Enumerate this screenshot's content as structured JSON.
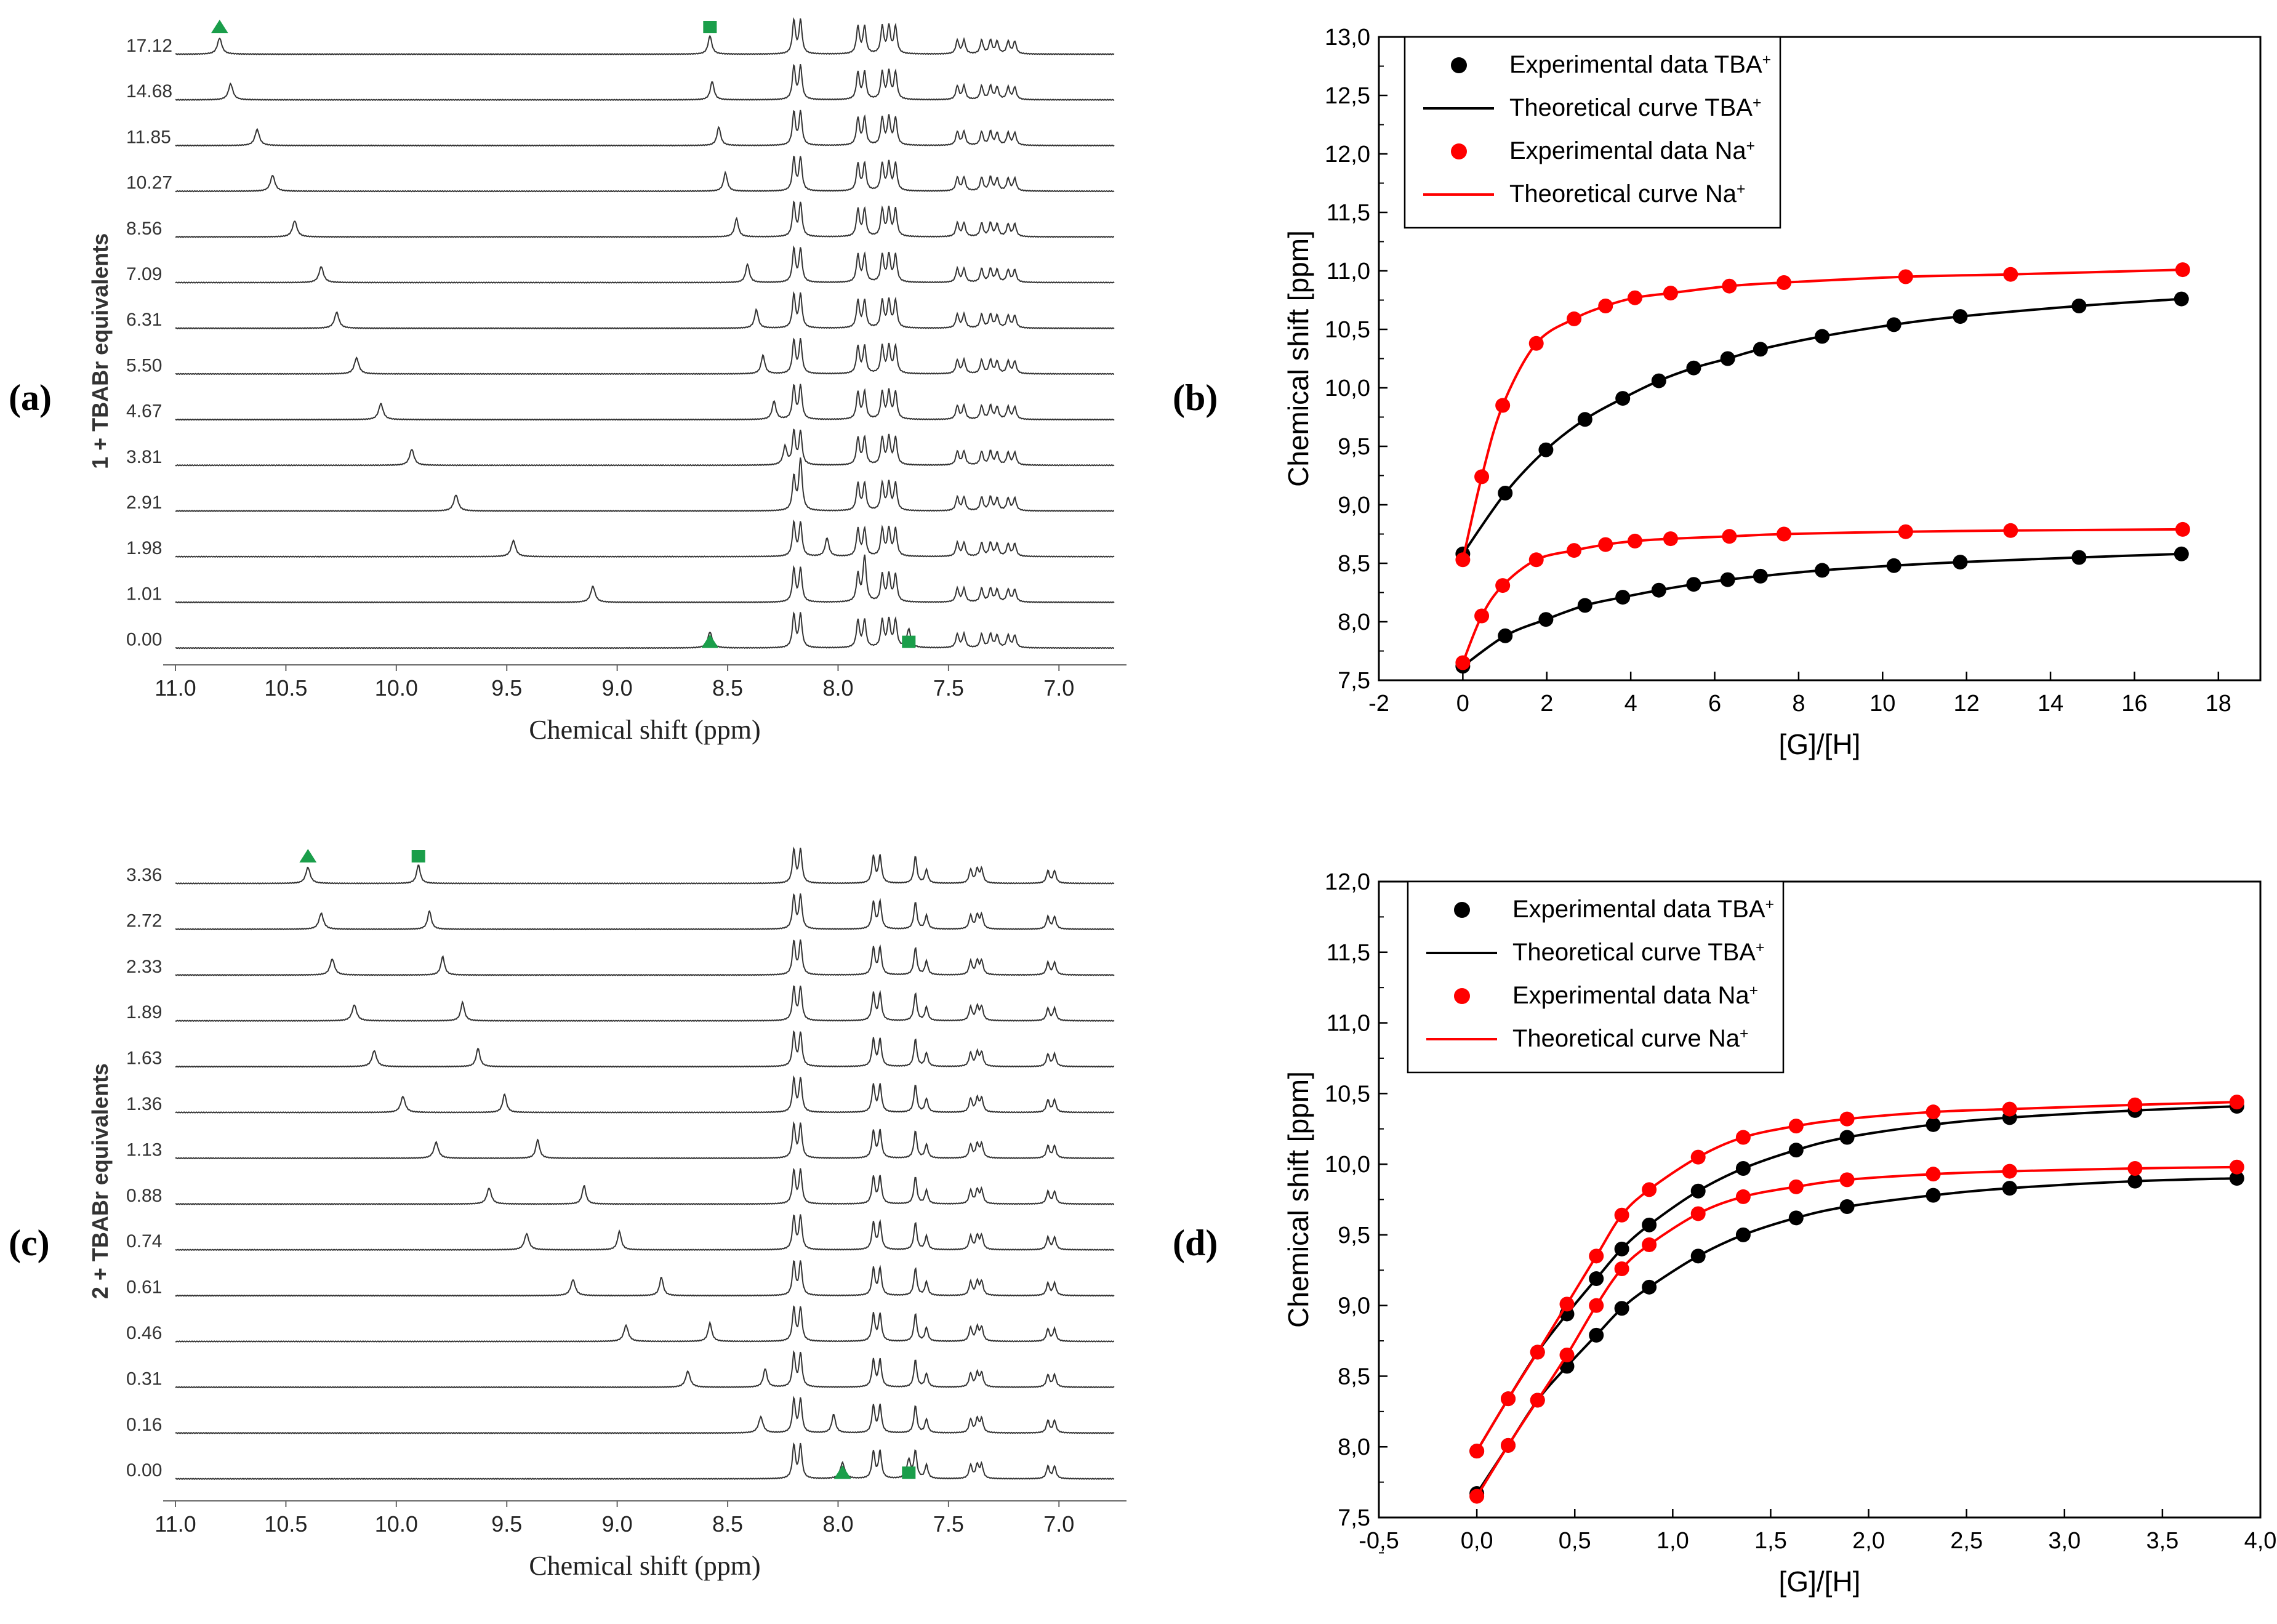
{
  "panels": {
    "a": "a",
    "b": "b",
    "c": "c",
    "d": "d"
  },
  "chart_data": [
    {
      "id": "a",
      "type": "line",
      "subtype": "stacked-nmr-spectra",
      "ylabel": "1 + TBABr equivalents",
      "xlabel": "Chemical shift (ppm)",
      "xlim": [
        11.0,
        6.75
      ],
      "x_reversed": true,
      "xticks": [
        "11.0",
        "10.5",
        "10.0",
        "9.5",
        "9.0",
        "8.5",
        "8.0",
        "7.5",
        "7.0"
      ],
      "trace_labels": [
        "17.12",
        "14.68",
        "11.85",
        "10.27",
        "8.56",
        "7.09",
        "6.31",
        "5.50",
        "4.67",
        "3.81",
        "2.91",
        "1.98",
        "1.01",
        "0.00"
      ],
      "peak1_ppm": [
        10.8,
        10.75,
        10.63,
        10.56,
        10.46,
        10.34,
        10.27,
        10.18,
        10.07,
        9.93,
        9.73,
        9.47,
        9.11,
        8.58
      ],
      "peak2_ppm": [
        8.58,
        8.57,
        8.54,
        8.51,
        8.46,
        8.41,
        8.37,
        8.34,
        8.29,
        8.24,
        8.17,
        8.05,
        7.88,
        7.68
      ],
      "fixed_peaks_ppm": [
        8.2,
        8.17,
        7.91,
        7.88,
        7.8,
        7.77,
        7.74,
        7.46,
        7.43,
        7.35,
        7.31,
        7.28,
        7.23,
        7.2
      ],
      "markers": [
        {
          "shape": "triangle",
          "trace": "17.12",
          "ppm": 10.8,
          "color": "#1a9e4a"
        },
        {
          "shape": "square",
          "trace": "17.12",
          "ppm": 8.58,
          "color": "#1a9e4a"
        },
        {
          "shape": "triangle",
          "trace": "0.00",
          "ppm": 8.58,
          "color": "#1a9e4a"
        },
        {
          "shape": "square",
          "trace": "0.00",
          "ppm": 7.68,
          "color": "#1a9e4a"
        }
      ]
    },
    {
      "id": "b",
      "type": "scatter",
      "xlabel": "[G]/[H]",
      "ylabel": "Chemical shift [ppm]",
      "xlim": [
        -2,
        19
      ],
      "ylim": [
        7.5,
        13.0
      ],
      "xticks": [
        "-2",
        "0",
        "2",
        "4",
        "6",
        "8",
        "10",
        "12",
        "14",
        "16",
        "18"
      ],
      "yticks": [
        "7,5",
        "8,0",
        "8,5",
        "9,0",
        "9,5",
        "10,0",
        "10,5",
        "11,0",
        "11,5",
        "12,0",
        "12,5",
        "13,0"
      ],
      "legend_position": "top-left",
      "legend": [
        {
          "label": "Experimental data TBA⁺",
          "kind": "marker",
          "color": "#000000"
        },
        {
          "label": "Theoretical curve TBA⁺",
          "kind": "line",
          "color": "#000000"
        },
        {
          "label": "Experimental data Na⁺",
          "kind": "marker",
          "color": "#ff0000"
        },
        {
          "label": "Theoretical curve Na⁺",
          "kind": "line",
          "color": "#ff0000"
        }
      ],
      "series": [
        {
          "color": "#000000",
          "x": [
            0,
            1.01,
            1.98,
            2.91,
            3.81,
            4.67,
            5.5,
            6.31,
            7.09,
            8.56,
            10.27,
            11.85,
            14.68,
            17.12
          ],
          "y": [
            8.58,
            9.1,
            9.47,
            9.73,
            9.91,
            10.06,
            10.17,
            10.25,
            10.33,
            10.44,
            10.54,
            10.61,
            10.7,
            10.76
          ]
        },
        {
          "color": "#000000",
          "x": [
            0,
            1.01,
            1.98,
            2.91,
            3.81,
            4.67,
            5.5,
            6.31,
            7.09,
            8.56,
            10.27,
            11.85,
            14.68,
            17.12
          ],
          "y": [
            7.62,
            7.88,
            8.02,
            8.14,
            8.21,
            8.27,
            8.32,
            8.36,
            8.39,
            8.44,
            8.48,
            8.51,
            8.55,
            8.58
          ]
        },
        {
          "color": "#ff0000",
          "x": [
            0,
            0.45,
            0.95,
            1.75,
            2.65,
            3.4,
            4.1,
            4.95,
            6.35,
            7.65,
            10.55,
            13.05,
            17.15
          ],
          "y": [
            8.53,
            9.24,
            9.85,
            10.38,
            10.59,
            10.7,
            10.77,
            10.81,
            10.87,
            10.9,
            10.95,
            10.97,
            11.01
          ]
        },
        {
          "color": "#ff0000",
          "x": [
            0,
            0.45,
            0.95,
            1.75,
            2.65,
            3.4,
            4.1,
            4.95,
            6.35,
            7.65,
            10.55,
            13.05,
            17.15
          ],
          "y": [
            7.65,
            8.05,
            8.31,
            8.53,
            8.61,
            8.66,
            8.69,
            8.71,
            8.73,
            8.75,
            8.77,
            8.78,
            8.79
          ]
        }
      ]
    },
    {
      "id": "c",
      "type": "line",
      "subtype": "stacked-nmr-spectra",
      "ylabel": "2 + TBABr equivalents",
      "xlabel": "Chemical shift (ppm)",
      "xlim": [
        11.0,
        6.75
      ],
      "x_reversed": true,
      "xticks": [
        "11.0",
        "10.5",
        "10.0",
        "9.5",
        "9.0",
        "8.5",
        "8.0",
        "7.5",
        "7.0"
      ],
      "trace_labels": [
        "3.36",
        "2.72",
        "2.33",
        "1.89",
        "1.63",
        "1.36",
        "1.13",
        "0.88",
        "0.74",
        "0.61",
        "0.46",
        "0.31",
        "0.16",
        "0.00"
      ],
      "peak1_ppm": [
        10.4,
        10.34,
        10.29,
        10.19,
        10.1,
        9.97,
        9.82,
        9.58,
        9.41,
        9.2,
        8.96,
        8.68,
        8.35,
        7.98
      ],
      "peak2_ppm": [
        9.9,
        9.85,
        9.79,
        9.7,
        9.63,
        9.51,
        9.36,
        9.15,
        8.99,
        8.8,
        8.58,
        8.33,
        8.02,
        7.68
      ],
      "fixed_peaks_ppm": [
        8.2,
        8.17,
        7.84,
        7.81,
        7.65,
        7.6,
        7.4,
        7.37,
        7.35,
        7.05,
        7.02
      ],
      "markers": [
        {
          "shape": "triangle",
          "trace": "3.36",
          "ppm": 10.4,
          "color": "#1a9e4a"
        },
        {
          "shape": "square",
          "trace": "3.36",
          "ppm": 9.9,
          "color": "#1a9e4a"
        },
        {
          "shape": "triangle",
          "trace": "0.00",
          "ppm": 7.98,
          "color": "#1a9e4a"
        },
        {
          "shape": "square",
          "trace": "0.00",
          "ppm": 7.68,
          "color": "#1a9e4a"
        }
      ]
    },
    {
      "id": "d",
      "type": "scatter",
      "xlabel": "[G]/[H]",
      "ylabel": "Chemical shift [ppm]",
      "xlim": [
        -0.5,
        4.0
      ],
      "ylim": [
        7.5,
        12.0
      ],
      "xticks": [
        "-0,5",
        "0,0",
        "0,5",
        "1,0",
        "1,5",
        "2,0",
        "2,5",
        "3,0",
        "3,5",
        "4,0"
      ],
      "yticks": [
        "7,5",
        "8,0",
        "8,5",
        "9,0",
        "9,5",
        "10,0",
        "10,5",
        "11,0",
        "11,5",
        "12,0"
      ],
      "legend_position": "top-left",
      "legend": [
        {
          "label": "Experimental data TBA⁺",
          "kind": "marker",
          "color": "#000000"
        },
        {
          "label": "Theoretical curve TBA⁺",
          "kind": "line",
          "color": "#000000"
        },
        {
          "label": "Experimental data Na⁺",
          "kind": "marker",
          "color": "#ff0000"
        },
        {
          "label": "Theoretical curve Na⁺",
          "kind": "line",
          "color": "#ff0000"
        }
      ],
      "series": [
        {
          "color": "#000000",
          "x": [
            0,
            0.16,
            0.31,
            0.46,
            0.61,
            0.74,
            0.88,
            1.13,
            1.36,
            1.63,
            1.89,
            2.33,
            2.72,
            3.36,
            3.88
          ],
          "y": [
            7.97,
            8.34,
            8.67,
            8.94,
            9.19,
            9.4,
            9.57,
            9.81,
            9.97,
            10.1,
            10.19,
            10.28,
            10.33,
            10.38,
            10.41
          ]
        },
        {
          "color": "#000000",
          "x": [
            0,
            0.16,
            0.31,
            0.46,
            0.61,
            0.74,
            0.88,
            1.13,
            1.36,
            1.63,
            1.89,
            2.33,
            2.72,
            3.36,
            3.88
          ],
          "y": [
            7.67,
            8.01,
            8.33,
            8.57,
            8.79,
            8.98,
            9.13,
            9.35,
            9.5,
            9.62,
            9.7,
            9.78,
            9.83,
            9.88,
            9.9
          ]
        },
        {
          "color": "#ff0000",
          "x": [
            0,
            0.16,
            0.31,
            0.46,
            0.61,
            0.74,
            0.88,
            1.13,
            1.36,
            1.63,
            1.89,
            2.33,
            2.72,
            3.36,
            3.88
          ],
          "y": [
            7.97,
            8.34,
            8.67,
            9.01,
            9.35,
            9.64,
            9.82,
            10.05,
            10.19,
            10.27,
            10.32,
            10.37,
            10.39,
            10.42,
            10.44
          ]
        },
        {
          "color": "#ff0000",
          "x": [
            0,
            0.16,
            0.31,
            0.46,
            0.61,
            0.74,
            0.88,
            1.13,
            1.36,
            1.63,
            1.89,
            2.33,
            2.72,
            3.36,
            3.88
          ],
          "y": [
            7.65,
            8.01,
            8.33,
            8.65,
            9.0,
            9.26,
            9.43,
            9.65,
            9.77,
            9.84,
            9.89,
            9.93,
            9.95,
            9.97,
            9.98
          ]
        }
      ]
    }
  ]
}
